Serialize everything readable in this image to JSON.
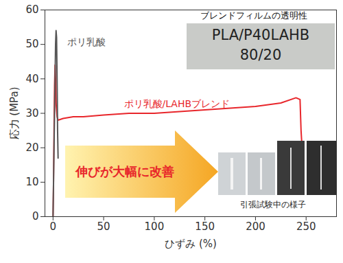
{
  "chart_data": {
    "type": "line",
    "x_label": "ひずみ (%)",
    "y_label": "応力 (MPa)",
    "xlim": [
      -8,
      280
    ],
    "xticks": [
      0,
      50,
      100,
      150,
      200,
      250
    ],
    "ylim": [
      0,
      60
    ],
    "yticks": [
      0,
      10,
      20,
      30,
      40,
      50,
      60
    ],
    "grid": false,
    "series": [
      {
        "name": "ポリ乳酸/LAHBブレンド",
        "color": "#e8262b",
        "x": [
          0,
          0.5,
          1,
          1.5,
          2,
          2.5,
          3,
          4,
          5,
          10,
          20,
          30,
          50,
          75,
          100,
          125,
          150,
          175,
          200,
          225,
          240,
          244,
          245,
          246
        ],
        "values": [
          0,
          10,
          25,
          38,
          44,
          40,
          33,
          29,
          28,
          28.5,
          29,
          29,
          29.5,
          30,
          30,
          30.5,
          31,
          31.5,
          32,
          33,
          34.5,
          34,
          25,
          20
        ]
      },
      {
        "name": "ポリ乳酸",
        "color": "#555555",
        "x": [
          0,
          1,
          2,
          2.5,
          3,
          3.5,
          4,
          4.5,
          5
        ],
        "values": [
          0,
          20,
          40,
          50,
          54,
          52,
          40,
          25,
          17
        ]
      }
    ],
    "annotations": {
      "inset_title": "ブレンドフィルムの透明性",
      "inset_text": [
        "PLA/P40LAHB",
        "80/20"
      ],
      "arrow_text": "伸びが大幅に改善",
      "photo_caption": "引張試験中の様子"
    }
  }
}
